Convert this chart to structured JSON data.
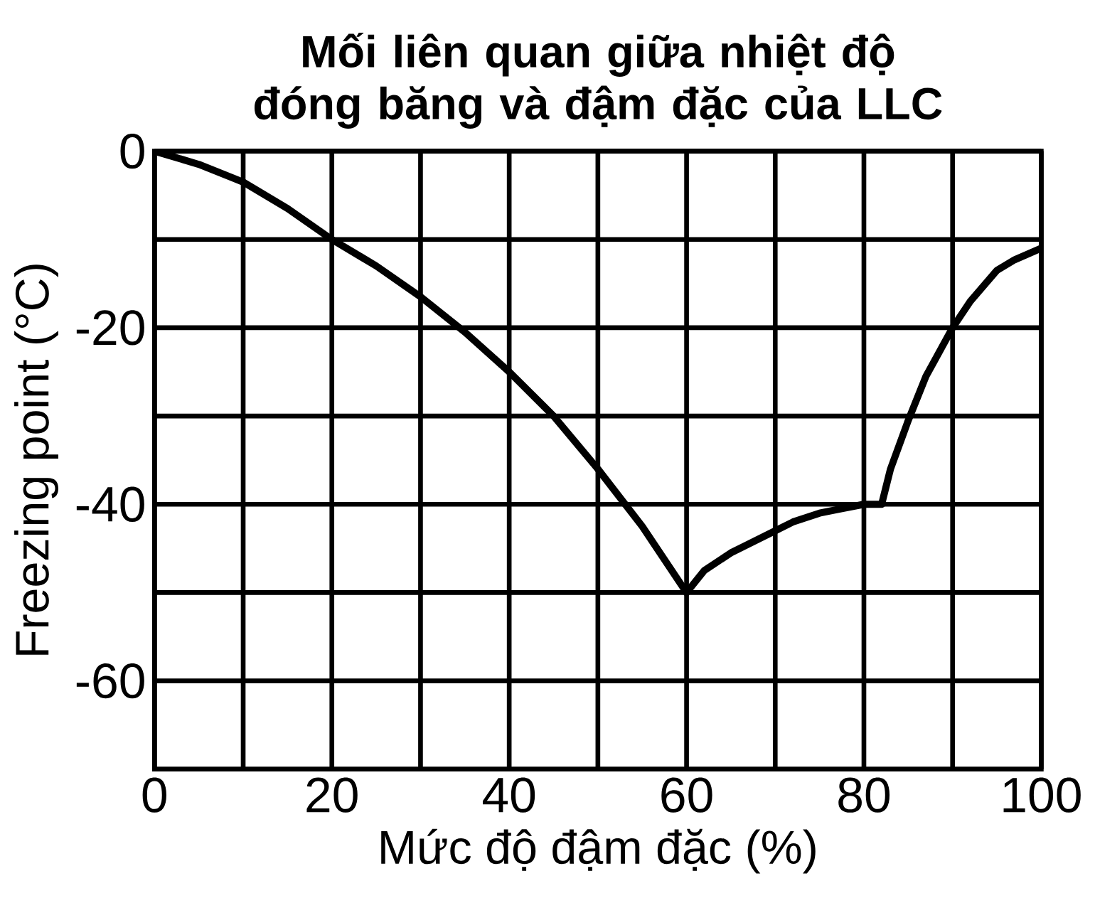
{
  "chart_data": {
    "type": "line",
    "title": "Mối liên quan giữa nhiệt độ đóng băng và đậm đặc của LLC",
    "xlabel": "Mức độ đậm đặc  (%)",
    "ylabel": "Freezing point (°C)",
    "x": [
      0,
      5,
      10,
      15,
      20,
      25,
      30,
      35,
      40,
      45,
      50,
      55,
      60,
      62,
      65,
      67,
      70,
      72,
      75,
      77,
      80,
      82,
      83,
      85,
      87,
      90,
      92,
      95,
      97,
      100
    ],
    "series": [
      {
        "color": "#000000",
        "values": [
          0,
          -1.5,
          -3.5,
          -6.5,
          -10,
          -13,
          -16.5,
          -20.5,
          -25,
          -30,
          -36,
          -42.5,
          -50,
          -47.5,
          -45.5,
          -44.5,
          -43,
          -42,
          -41,
          -40.6,
          -40,
          -40,
          -36,
          -30.5,
          -25.5,
          -20,
          -17,
          -13.5,
          -12.3,
          -11
        ]
      }
    ],
    "xlim": [
      0,
      100
    ],
    "ylim": [
      -70,
      0
    ],
    "xticks": [
      0,
      {
        "value": 10,
        "label": null
      },
      20,
      {
        "value": 30,
        "label": null
      },
      40,
      {
        "value": 50,
        "label": null
      },
      60,
      {
        "value": 70,
        "label": null
      },
      80,
      {
        "value": 90,
        "label": null
      },
      100
    ],
    "yticks": [
      {
        "value": -70,
        "label": null
      },
      -60,
      {
        "value": -50,
        "label": null
      },
      -40,
      {
        "value": -30,
        "label": null
      },
      -20,
      {
        "value": -10,
        "label": null
      },
      0
    ],
    "grid": true,
    "marker": "none",
    "line_style": "solid"
  }
}
